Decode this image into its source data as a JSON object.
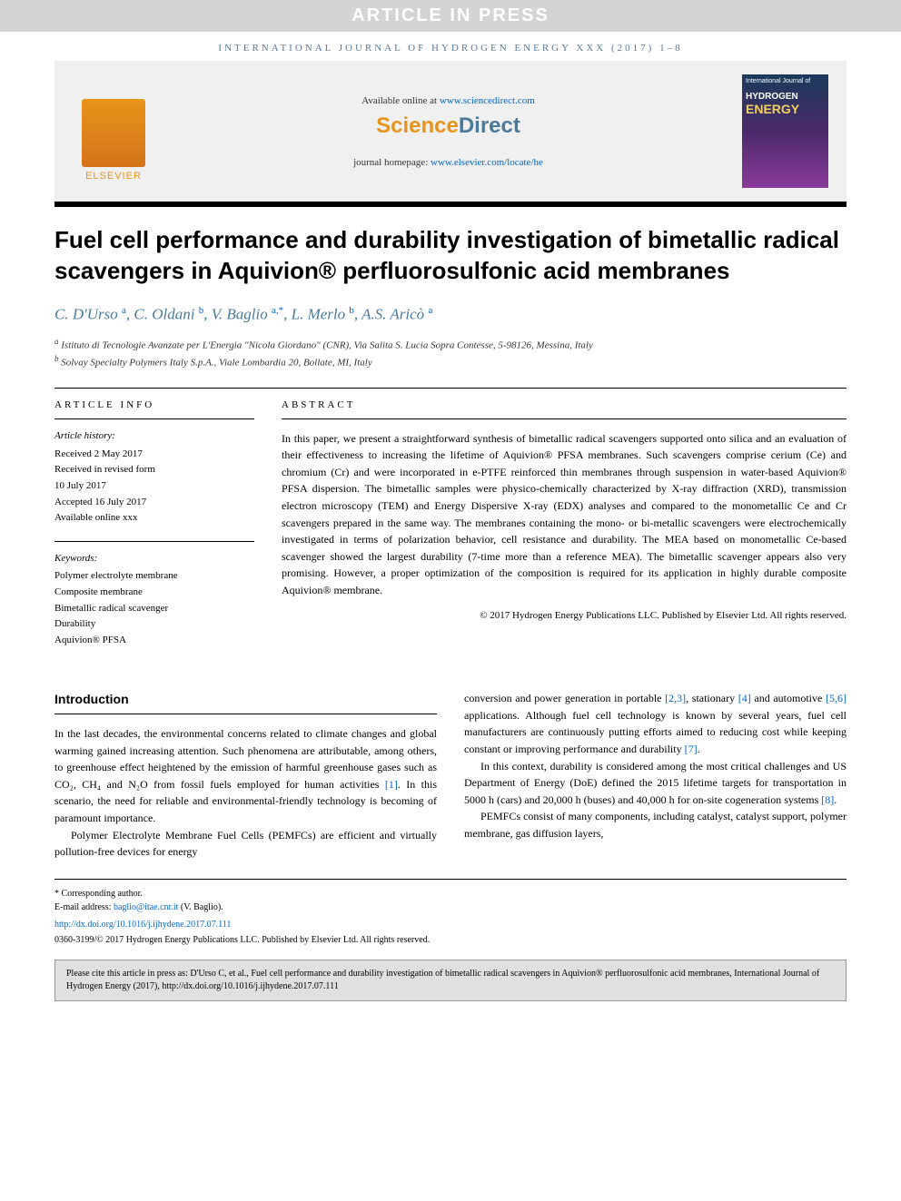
{
  "banner": "ARTICLE IN PRESS",
  "journal_header": "INTERNATIONAL JOURNAL OF HYDROGEN ENERGY XXX (2017) 1–8",
  "header": {
    "available_text": "Available online at ",
    "available_url": "www.sciencedirect.com",
    "sd_logo_orange": "Science",
    "sd_logo_rest": "Direct",
    "homepage_text": "journal homepage: ",
    "homepage_url": "www.elsevier.com/locate/he",
    "elsevier": "ELSEVIER",
    "cover": {
      "line1": "International Journal of",
      "line2": "HYDROGEN",
      "line3": "ENERGY"
    }
  },
  "title": "Fuel cell performance and durability investigation of bimetallic radical scavengers in Aquivion® perfluorosulfonic acid membranes",
  "authors_html": "C. D'Urso <sup class='sup-link'>a</sup>, C. Oldani <sup class='sup-link'>b</sup>, V. Baglio <sup class='sup-link'>a,*</sup>, L. Merlo <sup class='sup-link'>b</sup>, A.S. Aricò <sup class='sup-link'>a</sup>",
  "affiliations": {
    "a": "Istituto di Tecnologie Avanzate per L'Energia \"Nicola Giordano\" (CNR), Via Salita S. Lucia Sopra Contesse, 5-98126, Messina, Italy",
    "b": "Solvay Specialty Polymers Italy S.p.A., Viale Lombardia 20, Bollate, MI, Italy"
  },
  "article_info": {
    "heading": "ARTICLE INFO",
    "history_label": "Article history:",
    "history": [
      "Received 2 May 2017",
      "Received in revised form",
      "10 July 2017",
      "Accepted 16 July 2017",
      "Available online xxx"
    ],
    "keywords_label": "Keywords:",
    "keywords": [
      "Polymer electrolyte membrane",
      "Composite membrane",
      "Bimetallic radical scavenger",
      "Durability",
      "Aquivion® PFSA"
    ]
  },
  "abstract": {
    "heading": "ABSTRACT",
    "text": "In this paper, we present a straightforward synthesis of bimetallic radical scavengers supported onto silica and an evaluation of their effectiveness to increasing the lifetime of Aquivion® PFSA membranes. Such scavengers comprise cerium (Ce) and chromium (Cr) and were incorporated in e-PTFE reinforced thin membranes through suspension in water-based Aquivion® PFSA dispersion. The bimetallic samples were physico-chemically characterized by X-ray diffraction (XRD), transmission electron microscopy (TEM) and Energy Dispersive X-ray (EDX) analyses and compared to the monometallic Ce and Cr scavengers prepared in the same way. The membranes containing the mono- or bi-metallic scavengers were electrochemically investigated in terms of polarization behavior, cell resistance and durability. The MEA based on monometallic Ce-based scavenger showed the largest durability (7-time more than a reference MEA). The bimetallic scavenger appears also very promising. However, a proper optimization of the composition is required for its application in highly durable composite Aquivion® membrane.",
    "copyright": "© 2017 Hydrogen Energy Publications LLC. Published by Elsevier Ltd. All rights reserved."
  },
  "introduction": {
    "heading": "Introduction",
    "p1_pre": "In the last decades, the environmental concerns related to climate changes and global warming gained increasing attention. Such phenomena are attributable, among others, to greenhouse effect heightened by the emission of harmful greenhouse gases such as CO₂, CH₄ and N₂O from fossil fuels employed for human activities ",
    "p1_ref": "[1]",
    "p1_post": ". In this scenario, the need for reliable and environmental-friendly technology is becoming of paramount importance.",
    "p2": "Polymer Electrolyte Membrane Fuel Cells (PEMFCs) are efficient and virtually pollution-free devices for energy",
    "p3_pre": "conversion and power generation in portable ",
    "p3_r1": "[2,3]",
    "p3_mid1": ", stationary ",
    "p3_r2": "[4]",
    "p3_mid2": " and automotive ",
    "p3_r3": "[5,6]",
    "p3_mid3": " applications. Although fuel cell technology is known by several years, fuel cell manufacturers are continuously putting efforts aimed to reducing cost while keeping constant or improving performance and durability ",
    "p3_r4": "[7]",
    "p3_post": ".",
    "p4_pre": "In this context, durability is considered among the most critical challenges and US Department of Energy (DoE) defined the 2015 lifetime targets for transportation in 5000 h (cars) and 20,000 h (buses) and 40,000 h for on-site cogeneration systems ",
    "p4_ref": "[8]",
    "p4_post": ".",
    "p5": "PEMFCs consist of many components, including catalyst, catalyst support, polymer membrane, gas diffusion layers,"
  },
  "footer": {
    "corresponding_label": "* Corresponding author.",
    "email_label": "E-mail address: ",
    "email": "baglio@itae.cnr.it",
    "email_name": " (V. Baglio).",
    "doi": "http://dx.doi.org/10.1016/j.ijhydene.2017.07.111",
    "copyright": "0360-3199/© 2017 Hydrogen Energy Publications LLC. Published by Elsevier Ltd. All rights reserved."
  },
  "citation": "Please cite this article in press as: D'Urso C, et al., Fuel cell performance and durability investigation of bimetallic radical scavengers in Aquivion® perfluorosulfonic acid membranes, International Journal of Hydrogen Energy (2017), http://dx.doi.org/10.1016/j.ijhydene.2017.07.111",
  "colors": {
    "banner_bg": "#d4d4d4",
    "banner_text": "#ffffff",
    "journal_header": "#5a7a9a",
    "header_bg": "#f0f0f0",
    "elsevier_orange": "#e8941a",
    "link": "#0066cc",
    "author_color": "#4a7a9a",
    "citation_bg": "#e0e0e0"
  }
}
